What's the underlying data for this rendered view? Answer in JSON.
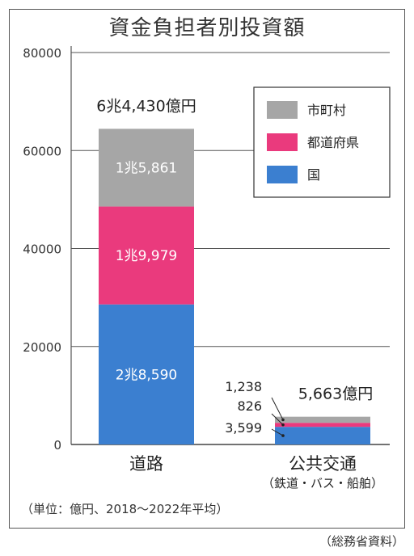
{
  "title": "資金負担者別投資額",
  "unit_note": "（単位：億円、2018～2022年平均）",
  "source": "（総務省資料）",
  "chart_data": {
    "type": "bar",
    "stacked": true,
    "title": "資金負担者別投資額",
    "categories": [
      "道路",
      "公共交通"
    ],
    "category_sublabels": [
      "",
      "（鉄道・バス・船舶）"
    ],
    "series": [
      {
        "name": "国",
        "color": "#3b7fd0",
        "values": [
          28590,
          3599
        ],
        "labels": [
          "2兆8,590",
          "3,599"
        ]
      },
      {
        "name": "都道府県",
        "color": "#ea3a7d",
        "values": [
          19979,
          826
        ],
        "labels": [
          "1兆9,979",
          "826"
        ]
      },
      {
        "name": "市町村",
        "color": "#a6a6a6",
        "values": [
          15861,
          1238
        ],
        "labels": [
          "1兆5,861",
          "1,238"
        ]
      }
    ],
    "totals": [
      "6兆4,430億円",
      "5,663億円"
    ],
    "ylim": [
      0,
      80000
    ],
    "yticks": [
      0,
      20000,
      40000,
      60000,
      80000
    ],
    "ytick_labels": [
      "0",
      "20000",
      "40000",
      "60000",
      "80000"
    ],
    "grid": true,
    "legend_position": "top-right",
    "legend_order": [
      "市町村",
      "都道府県",
      "国"
    ]
  }
}
